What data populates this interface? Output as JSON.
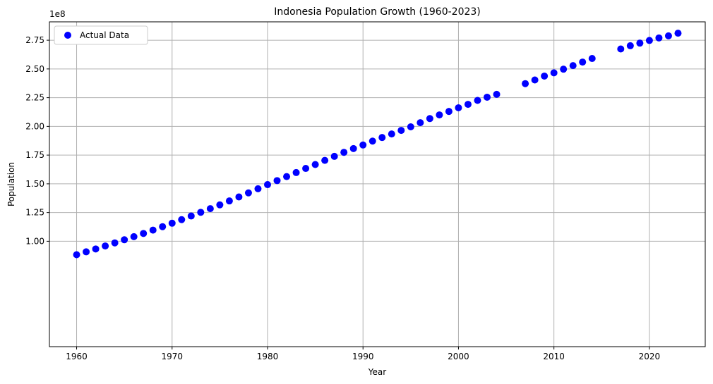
{
  "chart_data": {
    "type": "scatter",
    "title": "Indonesia Population Growth (1960-2023)",
    "xlabel": "Year",
    "ylabel": "Population",
    "y_offset_label": "1e8",
    "xlim": [
      1957.15,
      2025.85
    ],
    "ylim": [
      8250000,
      291000000
    ],
    "x_ticks": [
      1960,
      1970,
      1980,
      1990,
      2000,
      2010,
      2020
    ],
    "y_ticks": [
      100000000,
      125000000,
      150000000,
      175000000,
      200000000,
      225000000,
      250000000,
      275000000
    ],
    "y_tick_labels": [
      "1.00",
      "1.25",
      "1.50",
      "1.75",
      "2.00",
      "2.25",
      "2.50",
      "2.75"
    ],
    "grid": true,
    "legend_position": "upper-left",
    "marker_color": "#0000ff",
    "series": [
      {
        "name": "Actual Data",
        "x": [
          1960,
          1961,
          1962,
          1963,
          1964,
          1965,
          1966,
          1967,
          1968,
          1969,
          1970,
          1971,
          1972,
          1973,
          1974,
          1975,
          1976,
          1977,
          1978,
          1979,
          1980,
          1981,
          1982,
          1983,
          1984,
          1985,
          1986,
          1987,
          1988,
          1989,
          1990,
          1991,
          1992,
          1993,
          1994,
          1995,
          1996,
          1997,
          1998,
          1999,
          2000,
          2001,
          2002,
          2003,
          2004,
          2007,
          2008,
          2009,
          2010,
          2011,
          2012,
          2013,
          2014,
          2017,
          2018,
          2019,
          2020,
          2021,
          2022,
          2023
        ],
        "y": [
          88300000,
          90800000,
          93300000,
          95900000,
          98600000,
          101300000,
          104000000,
          106800000,
          109700000,
          112700000,
          115700000,
          118800000,
          122000000,
          125200000,
          128400000,
          131700000,
          135100000,
          138600000,
          142100000,
          145700000,
          149300000,
          152800000,
          156300000,
          159800000,
          163400000,
          166800000,
          170400000,
          173900000,
          177400000,
          180700000,
          183800000,
          187200000,
          190300000,
          193400000,
          196500000,
          199600000,
          203200000,
          206800000,
          210000000,
          213000000,
          216200000,
          219200000,
          222600000,
          225400000,
          227900000,
          237200000,
          240400000,
          243800000,
          246600000,
          249800000,
          252900000,
          256000000,
          259100000,
          267400000,
          270200000,
          272500000,
          274800000,
          277000000,
          278800000,
          281100000
        ]
      }
    ]
  }
}
